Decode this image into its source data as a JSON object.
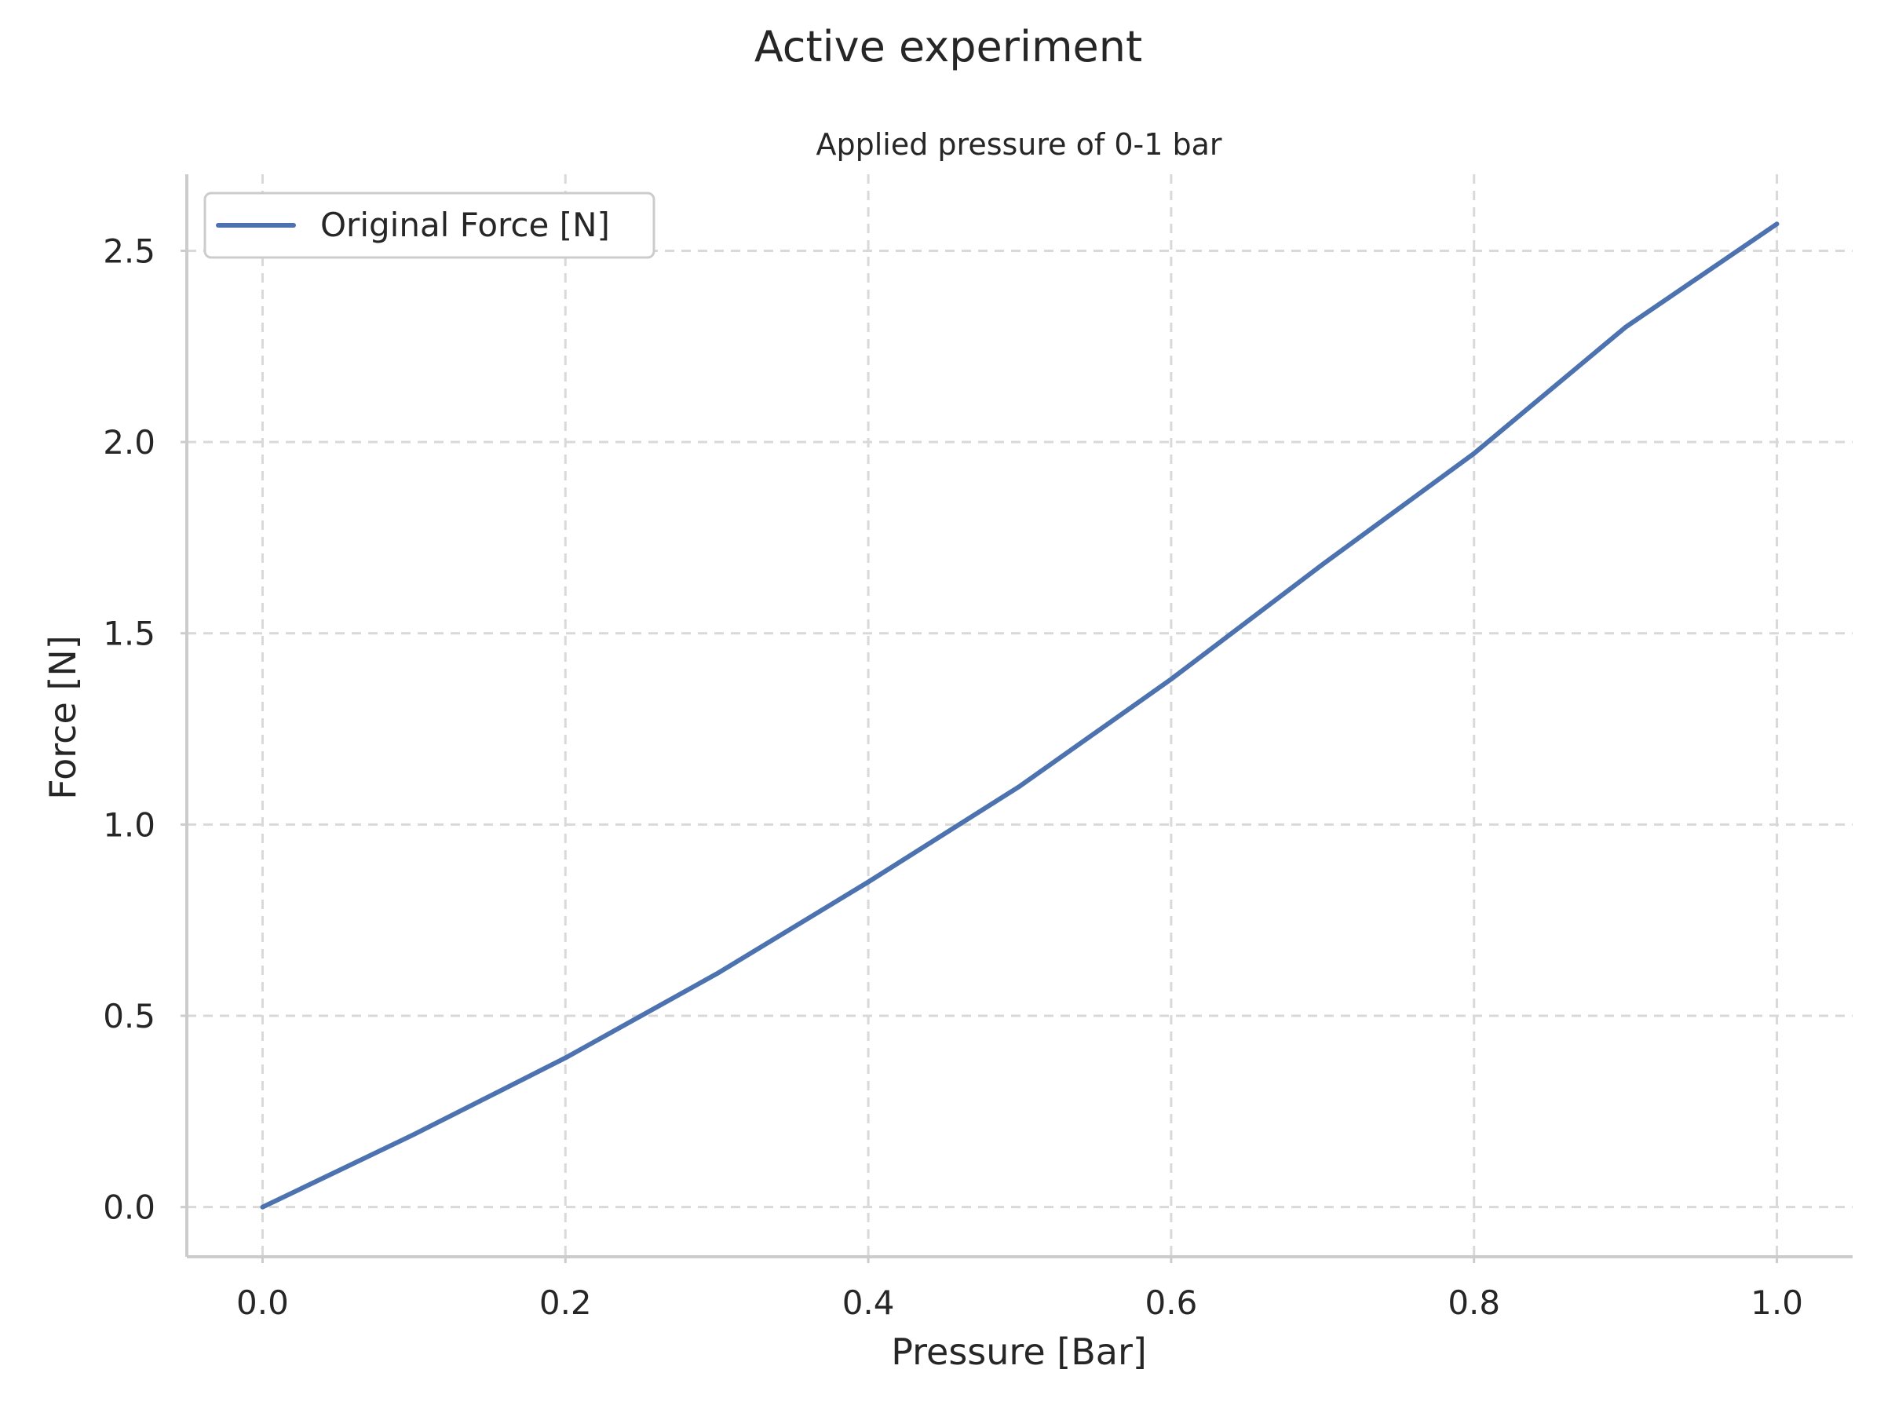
{
  "chart_data": {
    "type": "line",
    "suptitle": "Active experiment",
    "title": "Applied pressure of 0-1 bar",
    "xlabel": "Pressure [Bar]",
    "ylabel": "Force [N]",
    "xlim": [
      -0.05,
      1.05
    ],
    "ylim": [
      -0.13,
      2.7
    ],
    "xticks": [
      0.0,
      0.2,
      0.4,
      0.6,
      0.8,
      1.0
    ],
    "xtick_labels": [
      "0.0",
      "0.2",
      "0.4",
      "0.6",
      "0.8",
      "1.0"
    ],
    "yticks": [
      0.0,
      0.5,
      1.0,
      1.5,
      2.0,
      2.5
    ],
    "ytick_labels": [
      "0.0",
      "0.5",
      "1.0",
      "1.5",
      "2.0",
      "2.5"
    ],
    "grid": true,
    "legend_position": "top-left",
    "series": [
      {
        "name": "Original Force [N]",
        "color": "#4c72b0",
        "x": [
          0.0,
          0.1,
          0.2,
          0.3,
          0.4,
          0.5,
          0.6,
          0.7,
          0.8,
          0.9,
          1.0
        ],
        "y": [
          0.0,
          0.19,
          0.39,
          0.61,
          0.85,
          1.1,
          1.38,
          1.68,
          1.97,
          2.3,
          2.57
        ]
      }
    ]
  }
}
